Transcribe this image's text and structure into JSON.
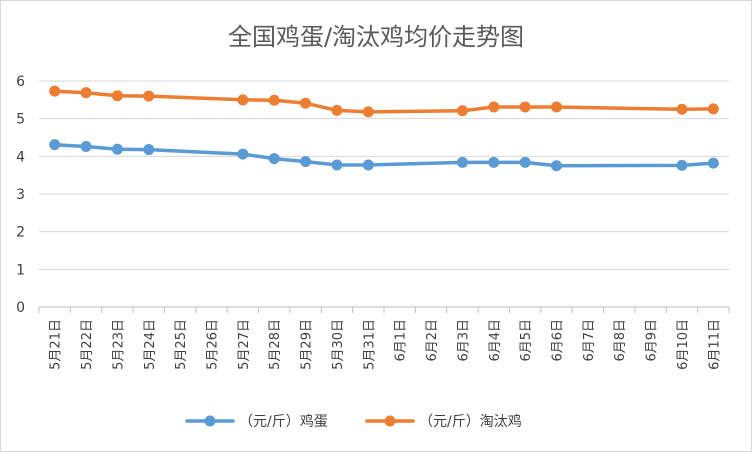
{
  "chart_data": {
    "type": "line",
    "title": "全国鸡蛋/淘汰鸡均价走势图",
    "xlabel": "",
    "ylabel": "",
    "ylim": [
      0,
      6
    ],
    "yticks": [
      0,
      1,
      2,
      3,
      4,
      5,
      6
    ],
    "grid": "horizontal",
    "legend_position": "bottom",
    "categories": [
      "5月21日",
      "5月22日",
      "5月23日",
      "5月24日",
      "5月25日",
      "5月26日",
      "5月27日",
      "5月28日",
      "5月29日",
      "5月30日",
      "5月31日",
      "6月1日",
      "6月2日",
      "6月3日",
      "6月4日",
      "6月5日",
      "6月6日",
      "6月7日",
      "6月8日",
      "6月9日",
      "6月10日",
      "6月11日"
    ],
    "series": [
      {
        "name": "（元/斤）鸡蛋",
        "color": "#5B9BD5",
        "values": [
          4.31,
          4.26,
          4.19,
          4.18,
          null,
          null,
          4.06,
          3.94,
          3.86,
          3.77,
          3.77,
          null,
          null,
          3.84,
          3.84,
          3.84,
          3.75,
          null,
          null,
          null,
          3.76,
          3.82
        ]
      },
      {
        "name": "（元/斤）淘汰鸡",
        "color": "#ED7D31",
        "values": [
          5.73,
          5.69,
          5.61,
          5.6,
          null,
          null,
          5.5,
          5.49,
          5.41,
          5.22,
          5.18,
          null,
          null,
          5.21,
          5.31,
          5.31,
          5.31,
          null,
          null,
          null,
          5.25,
          5.26
        ]
      }
    ]
  }
}
